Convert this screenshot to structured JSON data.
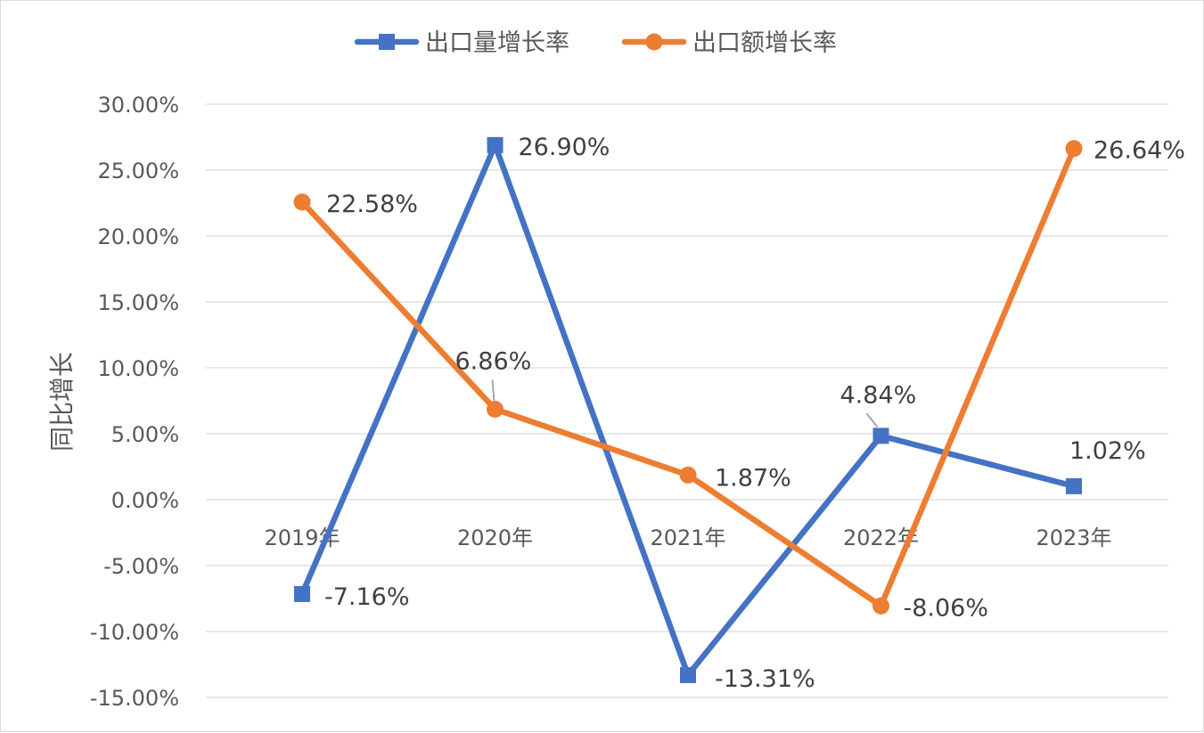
{
  "chart_data": {
    "type": "line",
    "title": "",
    "xlabel": "",
    "ylabel": "同比增长",
    "categories": [
      "2019年",
      "2020年",
      "2021年",
      "2022年",
      "2023年"
    ],
    "ylim": [
      -0.15,
      0.3
    ],
    "y_ticks": [
      0.3,
      0.25,
      0.2,
      0.15,
      0.1,
      0.05,
      0.0,
      -0.05,
      -0.1,
      -0.15
    ],
    "y_tick_labels": [
      "30.00%",
      "25.00%",
      "20.00%",
      "15.00%",
      "10.00%",
      "5.00%",
      "0.00%",
      "-5.00%",
      "-10.00%",
      "-15.00%"
    ],
    "grid": true,
    "legend_position": "top",
    "series": [
      {
        "name": "出口量增长率",
        "color": "#4472C4",
        "marker": "square",
        "values": [
          -0.0716,
          0.269,
          -0.1331,
          0.0484,
          0.0102
        ],
        "labels": [
          "-7.16%",
          "26.90%",
          "-13.31%",
          "4.84%",
          "1.02%"
        ]
      },
      {
        "name": "出口额增长率",
        "color": "#ED7D31",
        "marker": "circle",
        "values": [
          0.2258,
          0.0686,
          0.0187,
          -0.0806,
          0.2664
        ],
        "labels": [
          "22.58%",
          "6.86%",
          "1.87%",
          "-8.06%",
          "26.64%"
        ]
      }
    ]
  }
}
